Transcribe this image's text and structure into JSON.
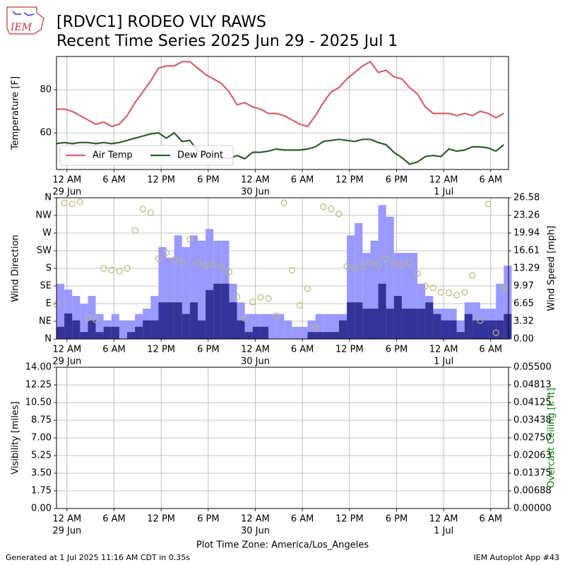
{
  "title": "[RDVC1] RODEO VLY RAWS",
  "subtitle": "Recent Time Series 2025 Jun 29 - 2025 Jul 1",
  "logo_text": "IEM",
  "footer_left": "Generated at 1 Jul 2025 11:16 AM CDT in 0.35s",
  "footer_right": "IEM Autoplot App #43",
  "x_axis": {
    "xlim": [
      "2025-06-28T22:40",
      "2025-07-01T08:16"
    ],
    "xticks": [
      {
        "value": "2025-06-29T00:00",
        "label": "12 AM"
      },
      {
        "value": "2025-06-29T06:00",
        "label": "6 AM"
      },
      {
        "value": "2025-06-29T12:00",
        "label": "12 PM"
      },
      {
        "value": "2025-06-29T18:00",
        "label": "6 PM"
      },
      {
        "value": "2025-06-30T00:00",
        "label": "12 AM"
      },
      {
        "value": "2025-06-30T06:00",
        "label": "6 AM"
      },
      {
        "value": "2025-06-30T12:00",
        "label": "12 PM"
      },
      {
        "value": "2025-06-30T18:00",
        "label": "6 PM"
      },
      {
        "value": "2025-07-01T00:00",
        "label": "12 AM"
      },
      {
        "value": "2025-07-01T06:00",
        "label": "6 AM"
      }
    ],
    "xtick_dates": [
      {
        "value": "2025-06-29T00:00",
        "label": "29 Jun"
      },
      {
        "value": "2025-06-30T00:00",
        "label": "30 Jun"
      },
      {
        "value": "2025-07-01T00:00",
        "label": "1 Jul"
      }
    ],
    "grid": true
  },
  "chart_data": [
    {
      "type": "line",
      "ylabel": "Temperature [F]",
      "ylim": [
        43,
        95.4
      ],
      "yticks": [
        60,
        80
      ],
      "grid": true,
      "legend": "lower left",
      "x": [
        "2025-06-28T22:40",
        "2025-06-28T23:40",
        "2025-06-29T00:40",
        "2025-06-29T01:40",
        "2025-06-29T02:40",
        "2025-06-29T03:40",
        "2025-06-29T04:40",
        "2025-06-29T05:40",
        "2025-06-29T06:40",
        "2025-06-29T07:40",
        "2025-06-29T08:40",
        "2025-06-29T09:40",
        "2025-06-29T10:40",
        "2025-06-29T11:40",
        "2025-06-29T12:40",
        "2025-06-29T13:40",
        "2025-06-29T14:40",
        "2025-06-29T15:40",
        "2025-06-29T16:40",
        "2025-06-29T17:40",
        "2025-06-29T18:40",
        "2025-06-29T19:40",
        "2025-06-29T20:40",
        "2025-06-29T21:40",
        "2025-06-29T22:40",
        "2025-06-29T23:40",
        "2025-06-30T00:40",
        "2025-06-30T01:40",
        "2025-06-30T02:40",
        "2025-06-30T03:40",
        "2025-06-30T04:40",
        "2025-06-30T05:40",
        "2025-06-30T06:40",
        "2025-06-30T07:40",
        "2025-06-30T08:40",
        "2025-06-30T09:40",
        "2025-06-30T10:40",
        "2025-06-30T11:40",
        "2025-06-30T12:40",
        "2025-06-30T13:40",
        "2025-06-30T14:40",
        "2025-06-30T15:40",
        "2025-06-30T16:40",
        "2025-06-30T17:40",
        "2025-06-30T18:40",
        "2025-06-30T19:40",
        "2025-06-30T20:40",
        "2025-06-30T21:40",
        "2025-06-30T22:40",
        "2025-06-30T23:40",
        "2025-07-01T00:40",
        "2025-07-01T01:40",
        "2025-07-01T02:40",
        "2025-07-01T03:40",
        "2025-07-01T04:40",
        "2025-07-01T05:40",
        "2025-07-01T06:40",
        "2025-07-01T07:40"
      ],
      "series": [
        {
          "name": "Air Temp",
          "color": "#d6616b",
          "values": [
            71,
            71,
            70,
            68,
            66,
            64,
            65,
            63,
            64,
            68,
            74,
            79,
            84,
            90,
            91,
            91,
            93,
            93,
            90,
            87,
            85,
            83,
            79,
            73,
            74,
            72,
            71,
            69,
            69,
            68,
            66,
            64,
            63,
            68,
            74,
            79,
            81,
            85,
            88,
            91,
            93,
            88,
            89,
            86,
            85,
            81,
            78,
            72,
            69,
            69,
            69,
            68,
            69,
            68,
            70,
            69,
            67,
            69
          ]
        },
        {
          "name": "Dew Point",
          "color": "#2d5e2d",
          "values": [
            55,
            55.5,
            55,
            55.5,
            55.5,
            55,
            55.5,
            55,
            55.5,
            56.5,
            57.5,
            58.5,
            59.5,
            60,
            57.5,
            60,
            56,
            56.5,
            51.5,
            51,
            50,
            48.5,
            48,
            49.5,
            48,
            51,
            51,
            51.5,
            52.5,
            52,
            52,
            52,
            52.5,
            53.5,
            56,
            56.5,
            57,
            56.5,
            56,
            57,
            57,
            55.5,
            54.5,
            51,
            48.5,
            45.5,
            46.5,
            49,
            49.5,
            49,
            52.5,
            51.5,
            52,
            53.5,
            53.5,
            53,
            51.5,
            54.5
          ]
        }
      ]
    },
    {
      "type": "combo",
      "ylabel": "Wind Direction",
      "y2label": "Wind Speed [mph]",
      "ylim": [
        0,
        360
      ],
      "yticks": [
        {
          "value": 0,
          "label": "N"
        },
        {
          "value": 45,
          "label": "NE"
        },
        {
          "value": 90,
          "label": "E"
        },
        {
          "value": 135,
          "label": "SE"
        },
        {
          "value": 180,
          "label": "S"
        },
        {
          "value": 225,
          "label": "SW"
        },
        {
          "value": 270,
          "label": "W"
        },
        {
          "value": 315,
          "label": "NW"
        },
        {
          "value": 360,
          "label": "N"
        }
      ],
      "y2lim": [
        0,
        26.58
      ],
      "y2ticks": [
        {
          "value": 0,
          "label": "0.00"
        },
        3.32,
        6.65,
        9.97,
        13.29,
        16.61,
        19.94,
        23.26,
        26.58
      ],
      "grid": true,
      "x": [
        "2025-06-28T22:40",
        "2025-06-28T23:40",
        "2025-06-29T00:40",
        "2025-06-29T01:40",
        "2025-06-29T02:40",
        "2025-06-29T03:40",
        "2025-06-29T04:40",
        "2025-06-29T05:40",
        "2025-06-29T06:40",
        "2025-06-29T07:40",
        "2025-06-29T08:40",
        "2025-06-29T09:40",
        "2025-06-29T10:40",
        "2025-06-29T11:40",
        "2025-06-29T12:40",
        "2025-06-29T13:40",
        "2025-06-29T14:40",
        "2025-06-29T15:40",
        "2025-06-29T16:40",
        "2025-06-29T17:40",
        "2025-06-29T18:40",
        "2025-06-29T19:40",
        "2025-06-29T20:40",
        "2025-06-29T21:40",
        "2025-06-29T22:40",
        "2025-06-29T23:40",
        "2025-06-30T00:40",
        "2025-06-30T01:40",
        "2025-06-30T02:40",
        "2025-06-30T03:40",
        "2025-06-30T04:40",
        "2025-06-30T05:40",
        "2025-06-30T06:40",
        "2025-06-30T07:40",
        "2025-06-30T08:40",
        "2025-06-30T09:40",
        "2025-06-30T10:40",
        "2025-06-30T11:40",
        "2025-06-30T12:40",
        "2025-06-30T13:40",
        "2025-06-30T14:40",
        "2025-06-30T15:40",
        "2025-06-30T16:40",
        "2025-06-30T17:40",
        "2025-06-30T18:40",
        "2025-06-30T19:40",
        "2025-06-30T20:40",
        "2025-06-30T21:40",
        "2025-06-30T22:40",
        "2025-06-30T23:40",
        "2025-07-01T00:40",
        "2025-07-01T01:40",
        "2025-07-01T02:40",
        "2025-07-01T03:40",
        "2025-07-01T04:40",
        "2025-07-01T05:40",
        "2025-07-01T06:40",
        "2025-07-01T07:40"
      ],
      "series": [
        {
          "type": "bar",
          "axis": "y2",
          "color": "#9999ff",
          "values": [
            10.4,
            9.3,
            8.1,
            6.6,
            8.1,
            4.7,
            3.5,
            4.7,
            3.5,
            3.5,
            4.7,
            5.7,
            8.1,
            17.3,
            15.3,
            19.5,
            17.3,
            19.5,
            18.5,
            20.7,
            18.5,
            18.5,
            10.4,
            6.9,
            4.7,
            4.7,
            4.7,
            4.7,
            4.7,
            3.5,
            2.3,
            2.3,
            3.5,
            4.7,
            4.7,
            4.7,
            4.7,
            19.5,
            21.8,
            16.2,
            18.5,
            25.2,
            23.0,
            16.2,
            16.2,
            16.2,
            10.4,
            8.1,
            5.7,
            5.7,
            5.7,
            3.5,
            6.9,
            6.9,
            5.7,
            5.7,
            10.4,
            13.8
          ]
        },
        {
          "type": "bar",
          "axis": "y2",
          "color": "#333399",
          "values": [
            2.3,
            4.8,
            3.5,
            1.3,
            3.5,
            1.3,
            2.3,
            2.3,
            0,
            1.3,
            2.3,
            3.5,
            3.5,
            6.9,
            6.9,
            6.9,
            4.7,
            6.9,
            3.5,
            9.2,
            10.4,
            10.4,
            6.9,
            3.5,
            1.3,
            2.3,
            2.3,
            0,
            0,
            0,
            0,
            0,
            1.3,
            1.3,
            1.3,
            1.3,
            3.5,
            6.9,
            6.9,
            5.7,
            5.7,
            10.4,
            5.7,
            8.1,
            5.7,
            5.7,
            5.7,
            6.9,
            4.7,
            3.5,
            3.5,
            1.3,
            4.7,
            3.5,
            3.5,
            3.5,
            3.5,
            4.7
          ]
        },
        {
          "type": "scatter",
          "color": "#b8b87a",
          "values": [
            88,
            347,
            344,
            349,
            54,
            49,
            180,
            176,
            173,
            180,
            277,
            331,
            322,
            205,
            220,
            202,
            196,
            254,
            194,
            187,
            189,
            185,
            171,
            108,
            52,
            94,
            106,
            103,
            59,
            347,
            175,
            86,
            128,
            29,
            337,
            331,
            319,
            185,
            180,
            185,
            194,
            189,
            205,
            191,
            189,
            194,
            167,
            135,
            130,
            119,
            117,
            112,
            119,
            162,
            47,
            344,
            16,
            130
          ]
        }
      ]
    },
    {
      "type": "line",
      "ylabel": "Visibility [miles]",
      "y2label": "Overcast Ceiling [k ft]",
      "y2label_color": "#008000",
      "xlabel": "Plot Time Zone: America/Los_Angeles",
      "ylim": [
        0,
        14
      ],
      "yticks": [
        {
          "value": 0,
          "label": "0.00"
        },
        1.75,
        {
          "value": 3.5,
          "label": "3.50"
        },
        5.25,
        {
          "value": 7,
          "label": "7.00"
        },
        8.75,
        {
          "value": 10.5,
          "label": "10.50"
        },
        12.25,
        {
          "value": 14,
          "label": "14.00"
        }
      ],
      "y2lim": [
        0,
        0.055
      ],
      "y2ticks": [
        {
          "value": 0,
          "label": "0.00000"
        },
        {
          "value": 0.006875,
          "label": "0.00688"
        },
        0.01375,
        {
          "value": 0.020625,
          "label": "0.02063"
        },
        {
          "value": 0.0275,
          "label": "0.02750"
        },
        {
          "value": 0.034375,
          "label": "0.03438"
        },
        0.04125,
        {
          "value": 0.048125,
          "label": "0.04813"
        },
        {
          "value": 0.055,
          "label": "0.05500"
        }
      ],
      "grid": true,
      "series": []
    }
  ]
}
